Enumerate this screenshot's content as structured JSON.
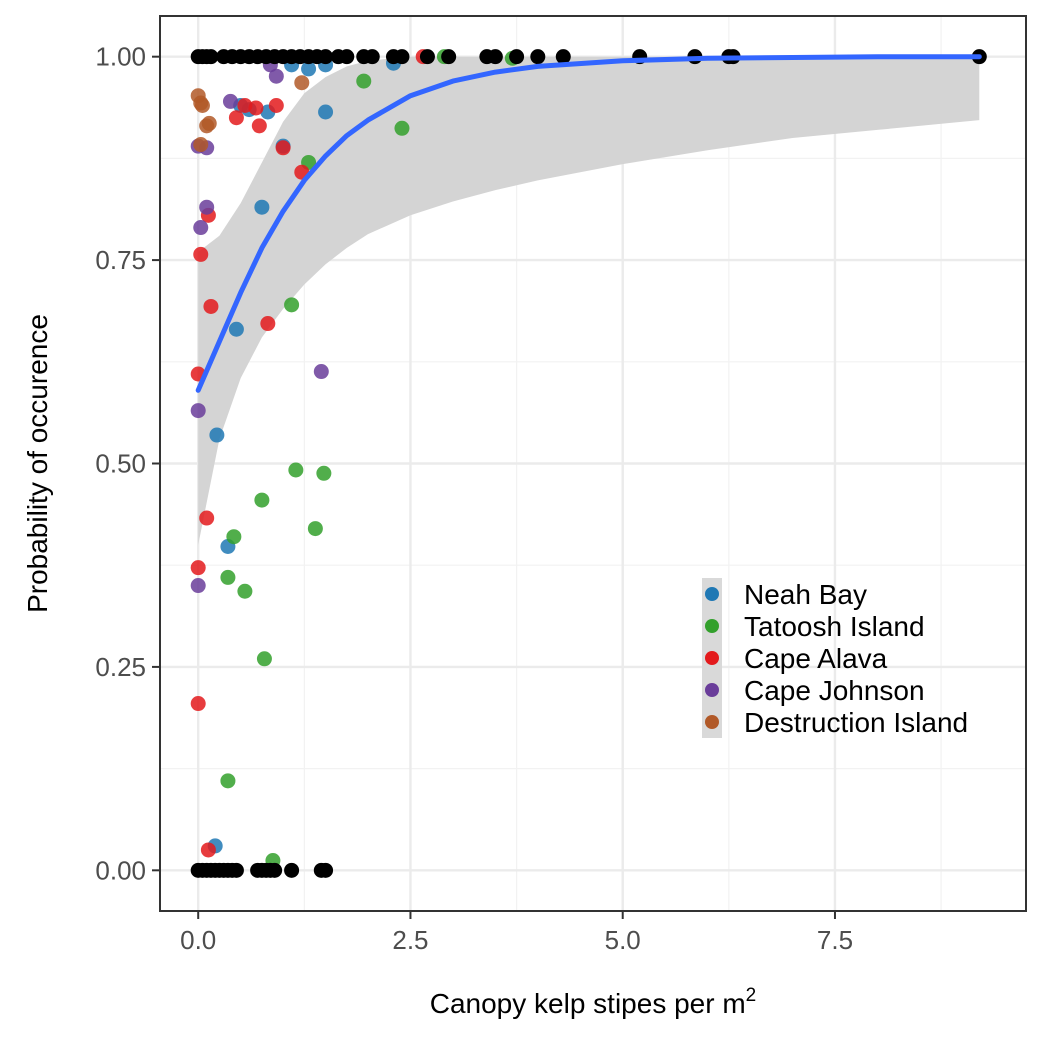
{
  "chart_data": {
    "type": "scatter",
    "xlabel": "Canopy kelp stipes per m",
    "xlabel_superscript": "2",
    "ylabel": "Probability of occurence",
    "xlim": [
      -0.45,
      9.75
    ],
    "ylim": [
      -0.05,
      1.05
    ],
    "x_ticks": [
      0,
      2.5,
      5,
      7.5
    ],
    "x_tick_labels": [
      "0.0",
      "2.5",
      "5.0",
      "7.5"
    ],
    "y_ticks": [
      0,
      0.25,
      0.5,
      0.75,
      1
    ],
    "y_tick_labels": [
      "0.00",
      "0.25",
      "0.50",
      "0.75",
      "1.00"
    ],
    "grid": true,
    "legend_position": "bottom-right",
    "series": [
      {
        "name": "Neah Bay",
        "color": "#1f78b4",
        "points": [
          [
            0.22,
            0.535
          ],
          [
            0.35,
            0.398
          ],
          [
            0.45,
            0.665
          ],
          [
            0.75,
            0.815
          ],
          [
            0.82,
            0.932
          ],
          [
            1.0,
            0.89
          ],
          [
            1.5,
            0.932
          ],
          [
            0.5,
            0.94
          ],
          [
            0.6,
            0.935
          ],
          [
            1.1,
            0.99
          ],
          [
            1.3,
            0.985
          ],
          [
            1.5,
            0.99
          ],
          [
            2.3,
            0.992
          ],
          [
            0.2,
            0.03
          ]
        ]
      },
      {
        "name": "Tatoosh Island",
        "color": "#33a02c",
        "points": [
          [
            0.35,
            0.11
          ],
          [
            0.78,
            0.26
          ],
          [
            0.55,
            0.343
          ],
          [
            0.35,
            0.36
          ],
          [
            0.42,
            0.41
          ],
          [
            0.75,
            0.455
          ],
          [
            1.15,
            0.492
          ],
          [
            1.48,
            0.488
          ],
          [
            1.38,
            0.42
          ],
          [
            1.1,
            0.695
          ],
          [
            1.3,
            0.87
          ],
          [
            1.95,
            0.97
          ],
          [
            2.4,
            0.912
          ],
          [
            0.88,
            0.012
          ],
          [
            2.9,
            1.0
          ],
          [
            3.7,
            0.998
          ]
        ]
      },
      {
        "name": "Cape Alava",
        "color": "#e31a1c",
        "points": [
          [
            0.0,
            0.205
          ],
          [
            0.0,
            0.372
          ],
          [
            0.1,
            0.433
          ],
          [
            0.0,
            0.61
          ],
          [
            0.15,
            0.693
          ],
          [
            0.82,
            0.672
          ],
          [
            0.03,
            0.757
          ],
          [
            0.12,
            0.805
          ],
          [
            1.22,
            0.858
          ],
          [
            1.0,
            0.888
          ],
          [
            0.45,
            0.925
          ],
          [
            0.72,
            0.915
          ],
          [
            0.55,
            0.94
          ],
          [
            0.68,
            0.937
          ],
          [
            0.92,
            0.94
          ],
          [
            0.12,
            0.025
          ],
          [
            2.65,
            1.0
          ]
        ]
      },
      {
        "name": "Cape Johnson",
        "color": "#6a3d9a",
        "points": [
          [
            0.0,
            0.35
          ],
          [
            0.0,
            0.565
          ],
          [
            1.45,
            0.613
          ],
          [
            0.03,
            0.79
          ],
          [
            0.1,
            0.815
          ],
          [
            0.0,
            0.89
          ],
          [
            0.1,
            0.888
          ],
          [
            0.38,
            0.945
          ],
          [
            0.85,
            0.99
          ],
          [
            0.92,
            0.976
          ]
        ]
      },
      {
        "name": "Destruction Island",
        "color": "#b15928",
        "points": [
          [
            0.0,
            0.952
          ],
          [
            0.03,
            0.943
          ],
          [
            0.05,
            0.94
          ],
          [
            0.1,
            0.915
          ],
          [
            0.13,
            0.918
          ],
          [
            0.03,
            0.892
          ],
          [
            1.22,
            0.968
          ]
        ]
      }
    ],
    "observed_points": [
      [
        0,
        1
      ],
      [
        0.05,
        1
      ],
      [
        0.1,
        1
      ],
      [
        0.15,
        1
      ],
      [
        0.3,
        1
      ],
      [
        0.4,
        1
      ],
      [
        0.5,
        1
      ],
      [
        0.6,
        1
      ],
      [
        0.7,
        1
      ],
      [
        0.8,
        1
      ],
      [
        0.9,
        1
      ],
      [
        1.0,
        1
      ],
      [
        1.1,
        1
      ],
      [
        1.2,
        1
      ],
      [
        1.3,
        1
      ],
      [
        1.4,
        1
      ],
      [
        1.5,
        1
      ],
      [
        1.65,
        1
      ],
      [
        1.75,
        1
      ],
      [
        1.95,
        1
      ],
      [
        2.05,
        1
      ],
      [
        2.3,
        1
      ],
      [
        2.4,
        1
      ],
      [
        2.7,
        1
      ],
      [
        2.95,
        1
      ],
      [
        3.4,
        1
      ],
      [
        3.5,
        1
      ],
      [
        3.75,
        1
      ],
      [
        4.0,
        1
      ],
      [
        4.3,
        1
      ],
      [
        5.2,
        1
      ],
      [
        5.85,
        1
      ],
      [
        6.25,
        1
      ],
      [
        6.3,
        1
      ],
      [
        9.2,
        1
      ],
      [
        0,
        0
      ],
      [
        0.05,
        0
      ],
      [
        0.1,
        0
      ],
      [
        0.15,
        0
      ],
      [
        0.2,
        0
      ],
      [
        0.25,
        0
      ],
      [
        0.3,
        0
      ],
      [
        0.35,
        0
      ],
      [
        0.4,
        0
      ],
      [
        0.45,
        0
      ],
      [
        0.7,
        0
      ],
      [
        0.75,
        0
      ],
      [
        0.8,
        0
      ],
      [
        0.85,
        0
      ],
      [
        0.9,
        0
      ],
      [
        1.1,
        0
      ],
      [
        1.45,
        0
      ],
      [
        1.5,
        0
      ]
    ],
    "observed_color": "#000000",
    "fit_line": {
      "color": "#3366ff",
      "x": [
        0,
        0.25,
        0.5,
        0.75,
        1,
        1.25,
        1.5,
        1.75,
        2,
        2.5,
        3,
        3.5,
        4,
        5,
        6,
        7,
        8,
        9.2
      ],
      "y": [
        0.59,
        0.65,
        0.71,
        0.765,
        0.81,
        0.848,
        0.878,
        0.903,
        0.922,
        0.952,
        0.97,
        0.981,
        0.988,
        0.995,
        0.998,
        0.999,
        1.0,
        1.0
      ]
    },
    "confidence_band": {
      "color": "#d4d4d4",
      "x": [
        0,
        0.25,
        0.5,
        0.75,
        1,
        1.25,
        1.5,
        1.75,
        2,
        2.5,
        3,
        3.5,
        4,
        5,
        6,
        7,
        8,
        9.2
      ],
      "lower": [
        0.4,
        0.53,
        0.605,
        0.655,
        0.69,
        0.72,
        0.745,
        0.765,
        0.782,
        0.805,
        0.822,
        0.836,
        0.848,
        0.868,
        0.885,
        0.9,
        0.91,
        0.922
      ],
      "upper": [
        0.76,
        0.78,
        0.82,
        0.87,
        0.92,
        0.955,
        0.975,
        0.988,
        0.995,
        1.0,
        1.0,
        1.0,
        1.0,
        1.0,
        1.0,
        1.0,
        1.0,
        1.0
      ]
    }
  }
}
